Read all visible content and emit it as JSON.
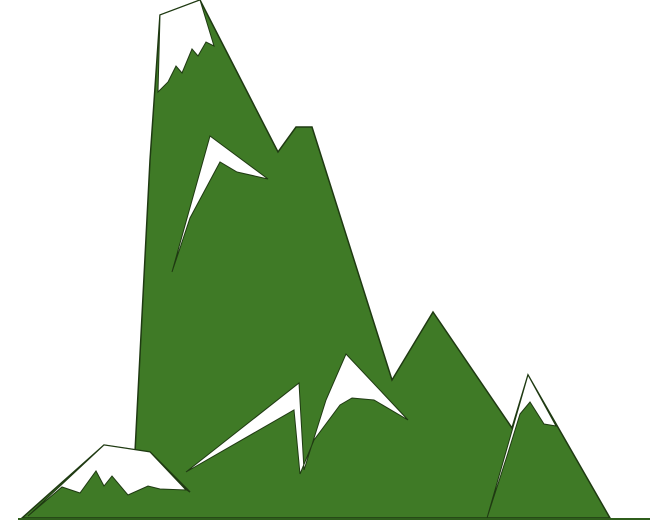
{
  "illustration": {
    "subject": "mountain-range-icon",
    "colors": {
      "background": "#ffffff",
      "mountain_fill": "#3f7a26",
      "outline": "#1f3a12",
      "snow": "#ffffff",
      "ground_line": "#2f5e1c"
    }
  }
}
